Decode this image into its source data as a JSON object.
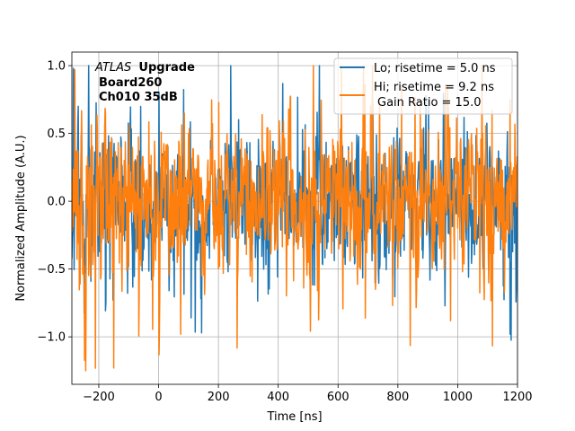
{
  "chart_data": {
    "type": "line",
    "title": "",
    "xlabel": "Time [ns]",
    "ylabel": "Normalized Amplitude (A.U.)",
    "xlim": [
      -290,
      1200
    ],
    "ylim": [
      -1.35,
      1.1
    ],
    "x_ticks": [
      -200,
      0,
      200,
      400,
      600,
      800,
      1000,
      1200
    ],
    "x_tick_labels": [
      "−200",
      "0",
      "200",
      "400",
      "600",
      "800",
      "1000",
      "1200"
    ],
    "y_ticks": [
      -1.0,
      -0.5,
      0.0,
      0.5,
      1.0
    ],
    "y_tick_labels": [
      "−1.0",
      "−0.5",
      "0.0",
      "0.5",
      "1.0"
    ],
    "grid": true,
    "legend_location": "top-right",
    "annotation": {
      "atlas_italic": "ATLAS",
      "atlas_bold": "Upgrade",
      "line2": "Board260",
      "line3": "Ch010 35dB"
    },
    "series": [
      {
        "name": "Lo; risetime = 5.0 ns",
        "color": "#1f77b4",
        "noise_envelope": 0.55,
        "x_range": [
          -290,
          1200
        ],
        "sample_step_ns": 1.25,
        "notable_min": {
          "x": 1175,
          "y": -0.98
        },
        "notable_max": {
          "x": -285,
          "y": 0.98
        }
      },
      {
        "name": "Hi; risetime = 9.2 ns",
        "color": "#ff7f0e",
        "noise_envelope": 0.6,
        "x_range": [
          -290,
          1200
        ],
        "sample_step_ns": 1.25,
        "notable_min": {
          "x": -150,
          "y": -1.23
        },
        "notable_max": {
          "x": -280,
          "y": 0.97
        }
      }
    ],
    "legend_extra": "Gain Ratio = 15.0"
  }
}
